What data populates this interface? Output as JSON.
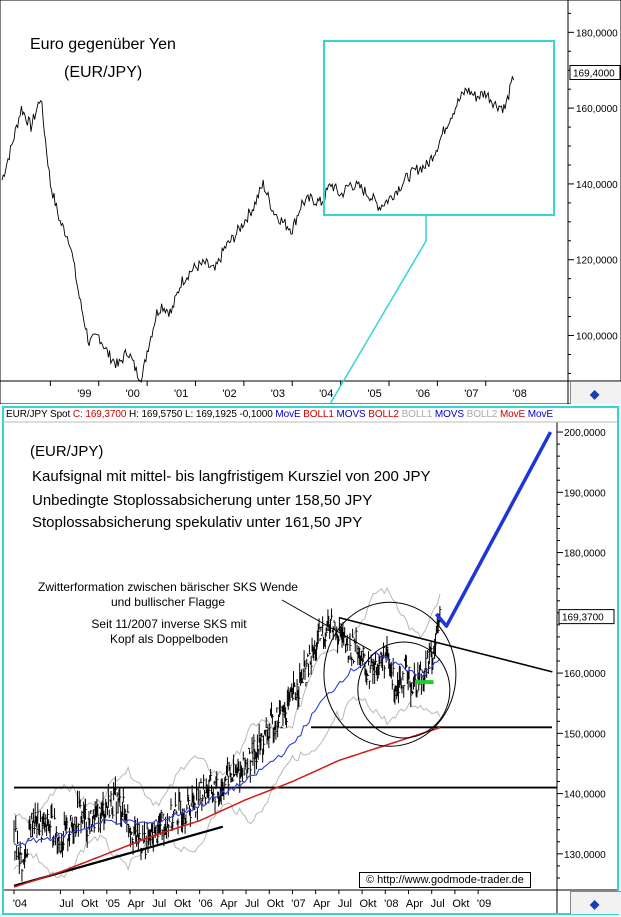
{
  "top_panel": {
    "title_line1": "Euro gegenüber Yen",
    "title_line2": "(EUR/JPY)",
    "price_label": "169,4000",
    "settings_icon": "chart-settings-icon"
  },
  "bottom_panel": {
    "info": {
      "symbol": "EUR/JPY Spot",
      "close": "C: 169,3700",
      "high": "H: 169,5750",
      "low": "L: 169,1925",
      "change": "-0,1000",
      "studies": [
        {
          "label": "MovE",
          "color": "#0000cc"
        },
        {
          "label": "BOLL1",
          "color": "#cc0000"
        },
        {
          "label": "MOVS",
          "color": "#0000cc"
        },
        {
          "label": "BOLL2",
          "color": "#cc0000"
        },
        {
          "label": "BOLL1",
          "color": "#aaaaaa"
        },
        {
          "label": "MOVS",
          "color": "#0000cc"
        },
        {
          "label": "BOLL2",
          "color": "#aaaaaa"
        },
        {
          "label": "MovE",
          "color": "#cc0000"
        },
        {
          "label": "MovE",
          "color": "#0000cc"
        }
      ]
    },
    "annotations": {
      "pair": "(EUR/JPY)",
      "line1": "Kaufsignal mit mittel- bis langfristigem Kursziel von 200 JPY",
      "line2": "Unbedingte Stoplossabsicherung unter 158,50 JPY",
      "line3": "Stoplossabsicherung spekulativ unter 161,50 JPY",
      "formation1": "Zwitterformation zwischen bärischer SKS Wende",
      "formation2": "und bullischer Flagge",
      "sks1": "Seit 11/2007 inverse SKS mit",
      "sks2": "Kopf als Doppelboden"
    },
    "price_label": "169,3700",
    "copyright": "© http://www.godmode-trader.de",
    "settings_icon": "chart-settings-icon"
  },
  "chart_data": [
    {
      "type": "line",
      "title": "Euro gegenüber Yen (EUR/JPY)",
      "ylim": [
        88,
        188
      ],
      "xlim": [
        1998.0,
        2009.7
      ],
      "y_ticks": [
        100,
        120,
        140,
        160,
        180
      ],
      "y_tick_labels": [
        "100,0000",
        "120,0000",
        "140,0000",
        "160,0000",
        "180,0000"
      ],
      "x_ticks": [
        1999,
        2000,
        2001,
        2002,
        2003,
        2004,
        2005,
        2006,
        2007,
        2008
      ],
      "x_tick_labels": [
        "'99",
        "'00",
        "'01",
        "'02",
        "'03",
        "'04",
        "'05",
        "'06",
        "'07",
        "'08"
      ],
      "last_price": 169.4,
      "series": [
        {
          "x": [
            1998.0,
            1998.2,
            1998.4,
            1998.6,
            1998.8,
            1999.0,
            1999.2,
            1999.4,
            1999.6,
            1999.8,
            2000.0,
            2000.2,
            2000.4,
            2000.6,
            2000.8,
            2000.9,
            2001.0,
            2001.2,
            2001.3,
            2001.5,
            2001.7,
            2001.9,
            2002.0,
            2002.2,
            2002.4,
            2002.6,
            2002.8,
            2003.0,
            2003.2,
            2003.4,
            2003.6,
            2003.8,
            2004.0,
            2004.2,
            2004.4,
            2004.6,
            2004.8,
            2005.0,
            2005.2,
            2005.4,
            2005.6,
            2005.8,
            2006.0,
            2006.2,
            2006.4,
            2006.6,
            2006.8,
            2007.0,
            2007.2,
            2007.4,
            2007.6,
            2007.8,
            2008.0,
            2008.2,
            2008.4,
            2008.6
          ],
          "y": [
            141,
            150,
            160,
            155,
            163,
            140,
            130,
            125,
            110,
            98,
            100,
            95,
            92,
            96,
            90,
            89,
            96,
            106,
            108,
            106,
            114,
            117,
            118,
            119,
            117,
            123,
            126,
            130,
            134,
            140,
            133,
            130,
            128,
            135,
            136,
            135,
            140,
            137,
            140,
            139,
            137,
            134,
            136,
            139,
            142,
            144,
            145,
            150,
            156,
            161,
            165,
            163,
            164,
            161,
            160,
            169.4
          ]
        }
      ]
    },
    {
      "type": "line",
      "title": "(EUR/JPY)",
      "ylim": [
        124,
        202
      ],
      "xlim": [
        2004.0,
        2009.85
      ],
      "y_ticks": [
        130,
        140,
        150,
        160,
        170,
        180,
        190,
        200
      ],
      "y_tick_labels": [
        "130,0000",
        "140,0000",
        "150,0000",
        "160,0000",
        "170,0000",
        "180,0000",
        "190,0000",
        "200,0000"
      ],
      "x_tick_labels": [
        "'04",
        "Jul",
        "Okt",
        "'05",
        "Apr",
        "Jul",
        "Okt",
        "'06",
        "Apr",
        "Jul",
        "Okt",
        "'07",
        "Apr",
        "Jul",
        "Okt",
        "'08",
        "Apr",
        "Jul",
        "Okt",
        "'09"
      ],
      "x_tick_positions": [
        2004.0,
        2004.5,
        2004.75,
        2005.0,
        2005.25,
        2005.5,
        2005.75,
        2006.0,
        2006.25,
        2006.5,
        2006.75,
        2007.0,
        2007.25,
        2007.5,
        2007.75,
        2008.0,
        2008.25,
        2008.5,
        2008.75,
        2009.0
      ],
      "last_price": 169.37,
      "series": [
        {
          "name": "EUR/JPY Spot",
          "x": [
            2004.0,
            2004.1,
            2004.2,
            2004.3,
            2004.4,
            2004.5,
            2004.6,
            2004.7,
            2004.8,
            2004.9,
            2005.0,
            2005.1,
            2005.2,
            2005.3,
            2005.4,
            2005.5,
            2005.6,
            2005.7,
            2005.8,
            2005.9,
            2006.0,
            2006.1,
            2006.2,
            2006.3,
            2006.4,
            2006.5,
            2006.6,
            2006.7,
            2006.8,
            2006.9,
            2007.0,
            2007.1,
            2007.2,
            2007.3,
            2007.4,
            2007.5,
            2007.6,
            2007.7,
            2007.8,
            2007.9,
            2008.0,
            2008.1,
            2008.2,
            2008.3,
            2008.4,
            2008.5,
            2008.6
          ],
          "y": [
            133,
            128,
            136,
            134,
            135,
            132,
            134,
            137,
            135,
            136,
            138,
            139,
            137,
            133,
            132,
            133,
            135,
            136,
            137,
            138,
            140,
            141,
            140,
            143,
            143,
            145,
            147,
            149,
            152,
            153,
            156,
            159,
            162,
            166,
            168,
            167,
            163,
            165,
            160,
            161,
            163,
            158,
            160,
            158,
            160,
            163,
            169.4
          ]
        },
        {
          "name": "MovE",
          "color": "#2e3fd6",
          "x": [
            2004.0,
            2004.5,
            2005.0,
            2005.5,
            2006.0,
            2006.5,
            2007.0,
            2007.3,
            2007.6,
            2007.9,
            2008.2,
            2008.4,
            2008.6
          ],
          "y": [
            131.5,
            133,
            135.5,
            135,
            138,
            142,
            148,
            155,
            160,
            163,
            161,
            159.5,
            162.5
          ]
        },
        {
          "name": "MovE",
          "color": "#d11a1a",
          "x": [
            2004.0,
            2004.5,
            2005.0,
            2005.5,
            2006.0,
            2006.5,
            2007.0,
            2007.5,
            2008.0,
            2008.3,
            2008.6
          ],
          "y": [
            124.5,
            127,
            130,
            133,
            135.5,
            139,
            142,
            145.5,
            148,
            149.5,
            151
          ]
        }
      ],
      "annotations": {
        "support_lines": [
          141,
          151
        ],
        "target": 200,
        "stop_losses": [
          158.5,
          161.5
        ]
      }
    }
  ]
}
